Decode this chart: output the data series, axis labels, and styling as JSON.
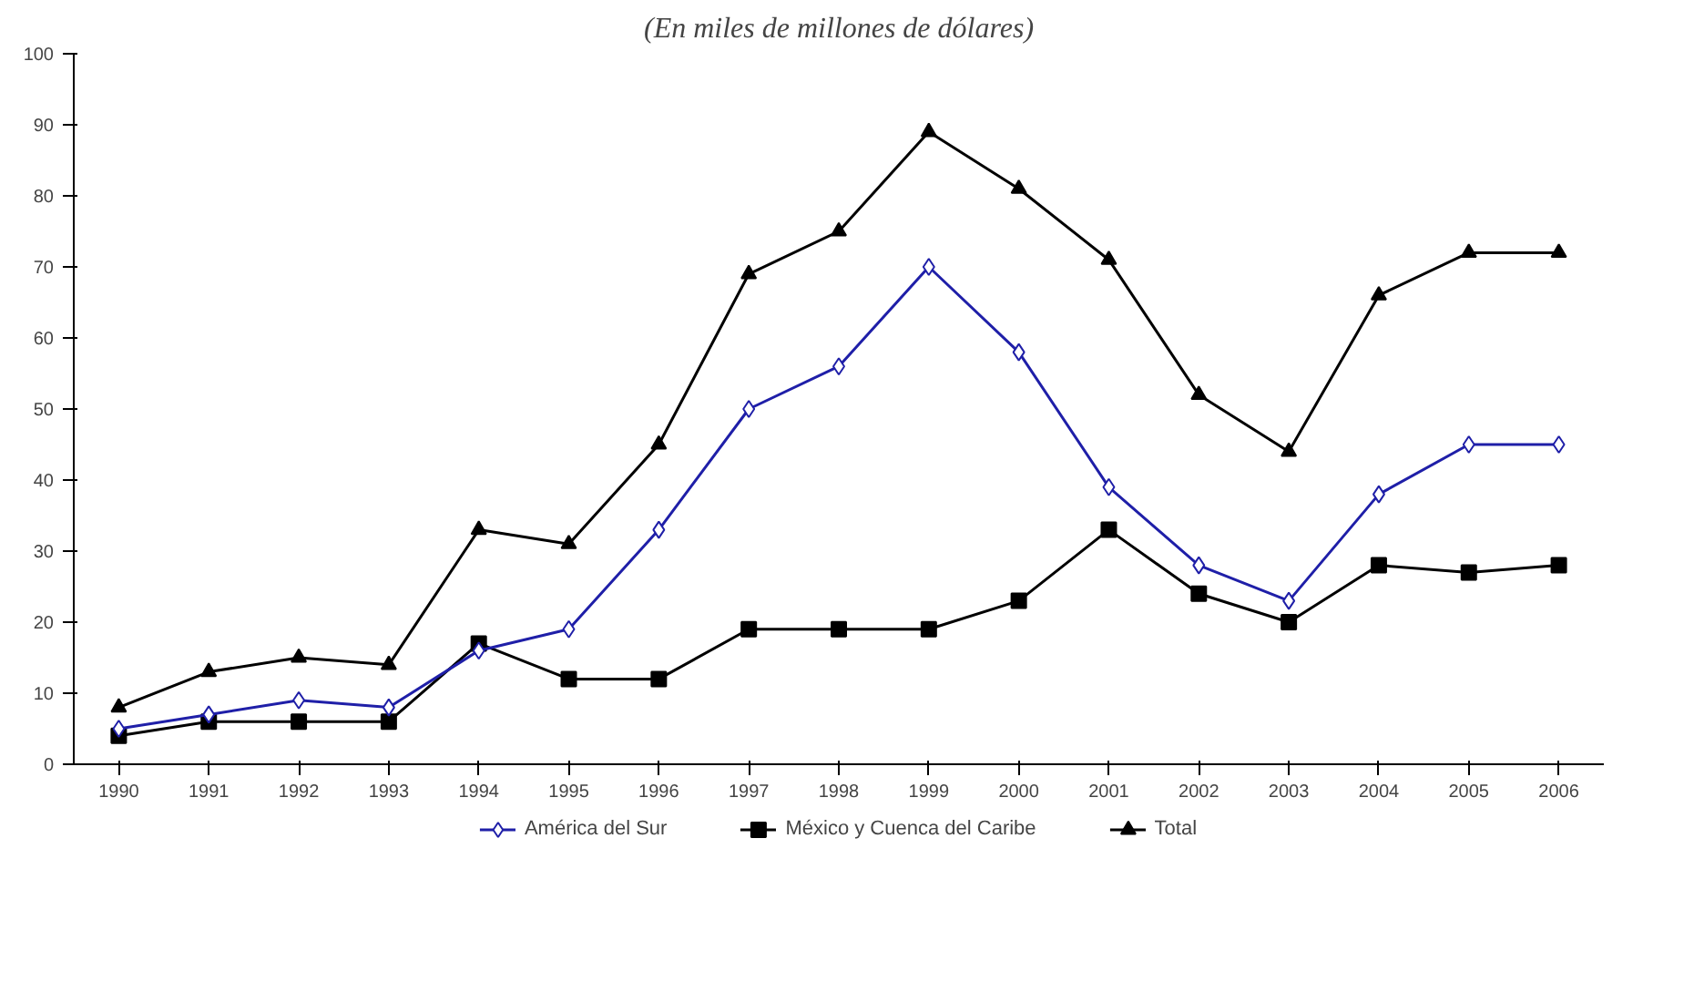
{
  "chart_data": {
    "type": "line",
    "title": "(En miles de millones de dólares)",
    "categories": [
      "1990",
      "1991",
      "1992",
      "1993",
      "1994",
      "1995",
      "1996",
      "1997",
      "1998",
      "1999",
      "2000",
      "2001",
      "2002",
      "2003",
      "2004",
      "2005",
      "2006"
    ],
    "series": [
      {
        "name": "América del Sur",
        "color": "#1f1fa8",
        "marker": "diamond",
        "values": [
          5,
          7,
          9,
          8,
          16,
          19,
          33,
          50,
          56,
          70,
          58,
          39,
          28,
          23,
          38,
          45,
          45
        ]
      },
      {
        "name": "México y Cuenca del Caribe",
        "color": "#000000",
        "marker": "square",
        "values": [
          4,
          6,
          6,
          6,
          17,
          12,
          12,
          19,
          19,
          19,
          23,
          33,
          24,
          20,
          28,
          27,
          28
        ]
      },
      {
        "name": "Total",
        "color": "#000000",
        "marker": "triangle",
        "values": [
          8,
          13,
          15,
          14,
          33,
          31,
          45,
          69,
          75,
          89,
          81,
          71,
          52,
          44,
          66,
          72,
          72
        ]
      }
    ],
    "ylim": [
      0,
      100
    ],
    "yticks": [
      0,
      10,
      20,
      30,
      40,
      50,
      60,
      70,
      80,
      90,
      100
    ],
    "grid": false,
    "legend": "bottom",
    "line_style": "solid"
  }
}
